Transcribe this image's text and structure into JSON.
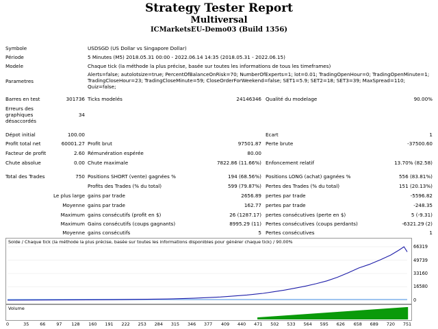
{
  "report": {
    "title": "Strategy Tester Report",
    "subtitle": "Multiversal",
    "server": "ICMarketsEU-Demo03 (Build 1356)"
  },
  "info": {
    "symbol_label": "Symbole",
    "symbol_value": "USDSGD (US Dollar vs Singapore Dollar)",
    "period_label": "Période",
    "period_value": "5 Minutes (M5) 2018.05.31 00:00 - 2022.06.14 14:35 (2018.05.31 - 2022.06.15)",
    "model_label": "Modele",
    "model_value": "Chaque tick (la méthode la plus précise, basée sur toutes les informations de tous les timeframes)",
    "params_label": "Parametres",
    "params_line1": "Alerts=false; autolotsize=true; PercentOfBalanceOnRisk=70; NumberOfExperts=1; lot=0.01; TradingOpenHour=0; TradingOpenMinute=1;",
    "params_line2": "TradingCloseHour=23; TradingCloseMinute=59; CloseOrderForWeekend=false; SET1=5.9; SET2=18; SET3=39; MaxSpread=110;",
    "params_line3": "Quiz=false;"
  },
  "stats": {
    "bars_label": "Barres en test",
    "bars_value": "301736",
    "ticks_label": "Ticks modelés",
    "ticks_value": "24146346",
    "quality_label": "Qualité du modelage",
    "quality_value": "90.00%",
    "errors_label_1": "Erreurs des",
    "errors_label_2": "graphiques",
    "errors_label_3": "désaccordés",
    "errors_value": "34",
    "deposit_label": "Dépot initial",
    "deposit_value": "100.00",
    "spread_label": "Ecart",
    "spread_value": "1",
    "net_label": "Profit total net",
    "net_value": "60001.27",
    "gross_profit_label": "Profit brut",
    "gross_profit_value": "97501.87",
    "gross_loss_label": "Perte brute",
    "gross_loss_value": "-37500.60",
    "pf_label": "Facteur de profit",
    "pf_value": "2.60",
    "expected_label": "Rémunération espérée",
    "expected_value": "80.00",
    "abs_dd_label": "Chute absolue",
    "abs_dd_value": "0.00",
    "max_dd_label": "Chute maximale",
    "max_dd_value": "7822.86 (11.66%)",
    "rel_dd_label": "Enfoncement relatif",
    "rel_dd_value": "13.70% (82.58)",
    "total_trades_label": "Total des Trades",
    "total_trades_value": "750",
    "short_label": "Positions SHORT (vente) gagnées %",
    "short_value": "194 (68.56%)",
    "long_label": "Positions LONG (achat) gagnées %",
    "long_value": "556 (83.81%)",
    "profit_trades_label": "Profits des Trades (% du total)",
    "profit_trades_value": "599 (79.87%)",
    "loss_trades_label": "Pertes des Trades (% du total)",
    "loss_trades_value": "151 (20.13%)",
    "largest_label": "Le plus large",
    "largest_profit_label": "gains par trade",
    "largest_profit_value": "2656.89",
    "largest_loss_label": "pertes par trade",
    "largest_loss_value": "-5596.82",
    "average_label": "Moyenne",
    "avg_profit_label": "gains par trade",
    "avg_profit_value": "162.77",
    "avg_loss_label": "pertes par trade",
    "avg_loss_value": "-248.35",
    "maximum_label": "Maximum",
    "max_cons_wins_label": "gains consécutifs (profit en $)",
    "max_cons_wins_value": "26 (1287.17)",
    "max_cons_losses_label": "pertes consécutives (perte en $)",
    "max_cons_losses_value": "5 (-9.31)",
    "maximal_label": "Maximum",
    "maximal_cons_profit_label": "Gains consécutifs (coups gagnants)",
    "maximal_cons_profit_value": "8995.29 (11)",
    "maximal_cons_loss_label": "Pertes consécutives (coups perdants)",
    "maximal_cons_loss_value": "-6321.29 (2)",
    "average2_label": "Moyenne",
    "avg_cons_wins_label": "gains consécutifs",
    "avg_cons_wins_value": "5",
    "avg_cons_losses_label": "Pertes consécutives",
    "avg_cons_losses_value": "1"
  },
  "chart_data": {
    "type": "line",
    "title": "Solde / Chaque tick (la méthode la plus précise, basée sur toutes les informations disponibles pour générer chaque tick) / 90.00%",
    "ylim": [
      0,
      66319
    ],
    "yticks": [
      "66319",
      "49739",
      "33160",
      "16580",
      "0"
    ],
    "xlim": [
      0,
      751
    ],
    "xticks": [
      0,
      35,
      66,
      97,
      128,
      160,
      191,
      222,
      253,
      284,
      315,
      346,
      377,
      409,
      440,
      471,
      502,
      533,
      564,
      595,
      626,
      658,
      689,
      720,
      751
    ],
    "series": [
      {
        "color": "#1c1ca8",
        "x": [
          0,
          100,
          200,
          300,
          350,
          400,
          450,
          480,
          500,
          520,
          540,
          560,
          580,
          600,
          620,
          640,
          660,
          680,
          700,
          720,
          735,
          745,
          751
        ],
        "values": [
          100,
          300,
          700,
          1500,
          2500,
          4000,
          6500,
          8500,
          10500,
          12500,
          15000,
          17500,
          20500,
          24000,
          28500,
          34000,
          40000,
          44500,
          50000,
          56000,
          62000,
          66319,
          60001
        ]
      }
    ],
    "volume": {
      "label": "Volume",
      "color": "#0a9a0a",
      "x_start": 471,
      "x_end": 751
    }
  }
}
